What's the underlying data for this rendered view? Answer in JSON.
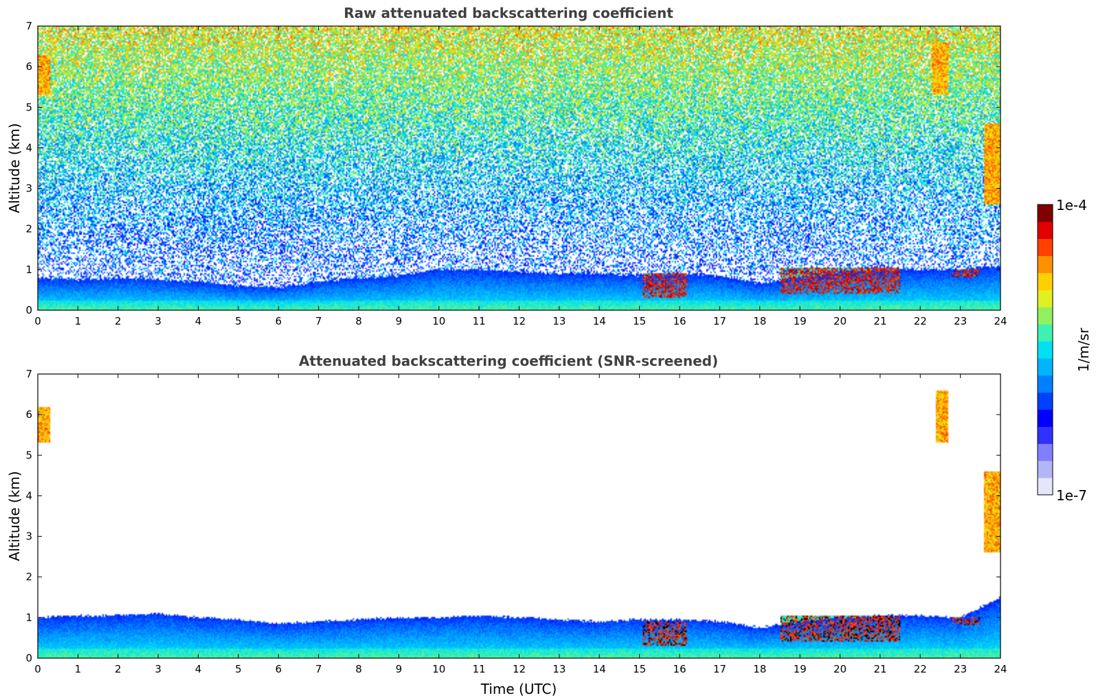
{
  "chart_data": [
    {
      "type": "heatmap",
      "title": "Raw attenuated backscattering coefficient",
      "xlabel": "",
      "ylabel": "Altitude (km)",
      "xlim": [
        0,
        24
      ],
      "ylim": [
        0,
        7
      ],
      "xticks": [
        0,
        1,
        2,
        3,
        4,
        5,
        6,
        7,
        8,
        9,
        10,
        11,
        12,
        13,
        14,
        15,
        16,
        17,
        18,
        19,
        20,
        21,
        22,
        23,
        24
      ],
      "yticks": [
        0,
        1,
        2,
        3,
        4,
        5,
        6,
        7
      ],
      "screened": false,
      "features": [
        {
          "kind": "boundary-layer",
          "t_start": 0,
          "t_end": 24,
          "top_km_profile": [
            [
              0,
              0.8
            ],
            [
              1,
              0.75
            ],
            [
              2,
              0.8
            ],
            [
              3,
              0.75
            ],
            [
              4,
              0.7
            ],
            [
              5,
              0.6
            ],
            [
              6,
              0.55
            ],
            [
              7,
              0.7
            ],
            [
              8,
              0.8
            ],
            [
              9,
              0.85
            ],
            [
              10,
              1.0
            ],
            [
              11,
              1.0
            ],
            [
              12,
              0.95
            ],
            [
              13,
              0.9
            ],
            [
              14,
              0.9
            ],
            [
              15,
              0.85
            ],
            [
              16,
              0.9
            ],
            [
              17,
              0.85
            ],
            [
              18,
              0.65
            ],
            [
              19,
              0.8
            ],
            [
              20,
              0.95
            ],
            [
              21,
              1.0
            ],
            [
              22,
              1.0
            ],
            [
              23,
              1.0
            ],
            [
              24,
              1.1
            ]
          ]
        },
        {
          "kind": "cloud",
          "t_start": 15.1,
          "t_end": 16.2,
          "alt_low_km": 0.3,
          "alt_high_km": 0.9
        },
        {
          "kind": "cloud",
          "t_start": 18.5,
          "t_end": 21.5,
          "alt_low_km": 0.4,
          "alt_high_km": 1.05
        },
        {
          "kind": "cloud",
          "t_start": 22.8,
          "t_end": 23.5,
          "alt_low_km": 0.8,
          "alt_high_km": 1.0
        },
        {
          "kind": "cirrus",
          "t_start": 0.0,
          "t_end": 0.3,
          "alt_low_km": 5.3,
          "alt_high_km": 6.3
        },
        {
          "kind": "cirrus",
          "t_start": 22.3,
          "t_end": 22.7,
          "alt_low_km": 5.3,
          "alt_high_km": 6.6
        },
        {
          "kind": "cirrus",
          "t_start": 23.6,
          "t_end": 24.0,
          "alt_low_km": 2.6,
          "alt_high_km": 4.6
        }
      ]
    },
    {
      "type": "heatmap",
      "title": "Attenuated backscattering coefficient (SNR-screened)",
      "xlabel": "Time (UTC)",
      "ylabel": "Altitude (km)",
      "xlim": [
        0,
        24
      ],
      "ylim": [
        0,
        7
      ],
      "xticks": [
        0,
        1,
        2,
        3,
        4,
        5,
        6,
        7,
        8,
        9,
        10,
        11,
        12,
        13,
        14,
        15,
        16,
        17,
        18,
        19,
        20,
        21,
        22,
        23,
        24
      ],
      "yticks": [
        0,
        1,
        2,
        3,
        4,
        5,
        6,
        7
      ],
      "screened": true,
      "features": [
        {
          "kind": "boundary-layer",
          "t_start": 0,
          "t_end": 24,
          "top_km_profile": [
            [
              0,
              1.0
            ],
            [
              1,
              1.05
            ],
            [
              2,
              1.05
            ],
            [
              3,
              1.1
            ],
            [
              4,
              1.0
            ],
            [
              5,
              0.95
            ],
            [
              6,
              0.85
            ],
            [
              7,
              0.9
            ],
            [
              8,
              0.95
            ],
            [
              9,
              1.0
            ],
            [
              10,
              1.0
            ],
            [
              11,
              1.05
            ],
            [
              12,
              1.0
            ],
            [
              13,
              0.95
            ],
            [
              14,
              0.9
            ],
            [
              15,
              0.95
            ],
            [
              16,
              0.95
            ],
            [
              17,
              0.9
            ],
            [
              18,
              0.75
            ],
            [
              19,
              0.9
            ],
            [
              20,
              1.0
            ],
            [
              21,
              1.05
            ],
            [
              22,
              1.05
            ],
            [
              23,
              1.0
            ],
            [
              24,
              1.5
            ]
          ]
        },
        {
          "kind": "cloud",
          "t_start": 15.1,
          "t_end": 16.2,
          "alt_low_km": 0.3,
          "alt_high_km": 0.9
        },
        {
          "kind": "cloud",
          "t_start": 18.5,
          "t_end": 21.5,
          "alt_low_km": 0.4,
          "alt_high_km": 1.05
        },
        {
          "kind": "cloud",
          "t_start": 22.8,
          "t_end": 23.5,
          "alt_low_km": 0.8,
          "alt_high_km": 1.0
        },
        {
          "kind": "cirrus",
          "t_start": 0.0,
          "t_end": 0.3,
          "alt_low_km": 5.3,
          "alt_high_km": 6.2
        },
        {
          "kind": "cirrus",
          "t_start": 22.4,
          "t_end": 22.7,
          "alt_low_km": 5.3,
          "alt_high_km": 6.6
        },
        {
          "kind": "cirrus",
          "t_start": 23.6,
          "t_end": 24.0,
          "alt_low_km": 2.6,
          "alt_high_km": 4.6
        }
      ]
    }
  ],
  "colorbar": {
    "label": "1/m/sr",
    "min_label": "1e-7",
    "max_label": "1e-4",
    "scale": "log",
    "range": [
      1e-07,
      0.0001
    ],
    "colors": [
      "#e6e6fa",
      "#b4b4f8",
      "#8080ff",
      "#3030ff",
      "#0000ff",
      "#0040ff",
      "#0080ff",
      "#00b4ff",
      "#00e0f0",
      "#40f0b0",
      "#90f060",
      "#e0f020",
      "#ffd000",
      "#ff9000",
      "#ff4000",
      "#e00000",
      "#800000"
    ]
  }
}
